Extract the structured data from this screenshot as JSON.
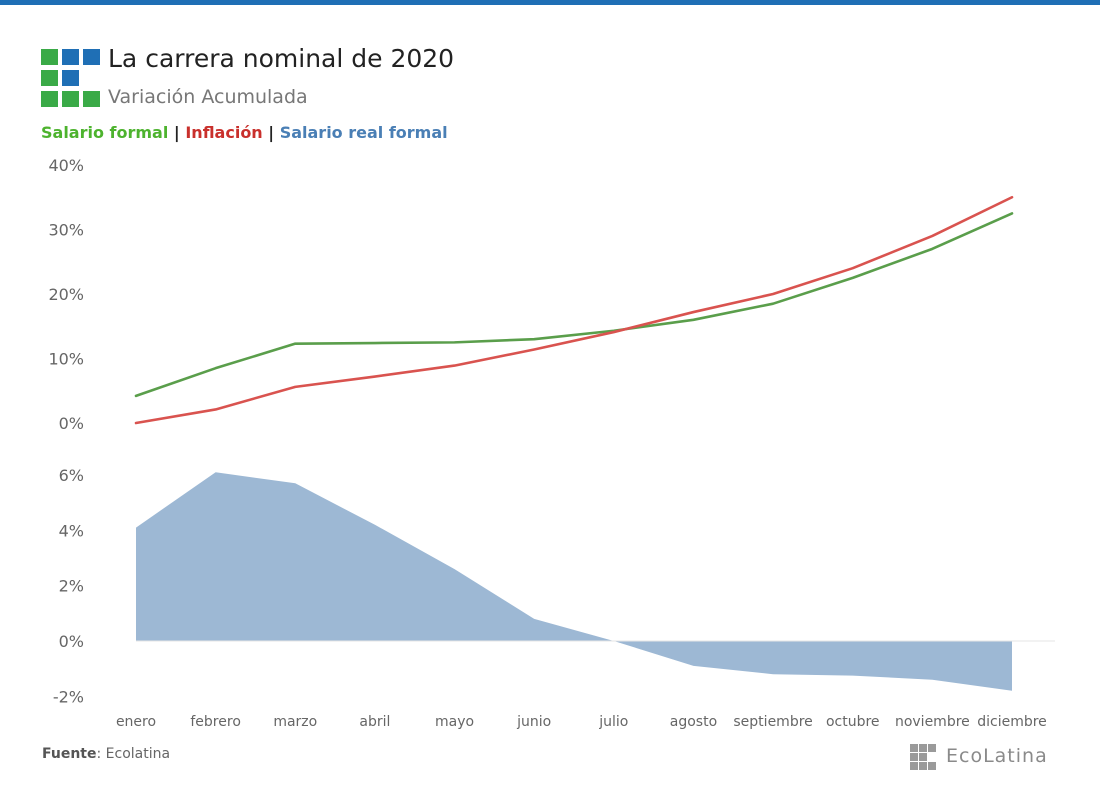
{
  "header": {
    "title": "La carrera nominal de 2020",
    "subtitle": "Variación Acumulada"
  },
  "legend": {
    "salario_formal": "Salario formal",
    "inflacion": "Inflación",
    "salario_real": "Salario real formal",
    "separator": "|"
  },
  "footer": {
    "source_label": "Fuente",
    "source_text": ": Ecolatina",
    "brand": "EcoLatina"
  },
  "colors": {
    "salario_formal": "#5a9e4b",
    "inflacion": "#d9534f",
    "salario_real": "#9db8d4",
    "legend_green": "#4db32e",
    "legend_red": "#c9302c",
    "legend_blue": "#4a7fb5",
    "logo_green": "#3aaa47",
    "logo_blue": "#1f6fb5"
  },
  "chart_data": [
    {
      "type": "line",
      "categories": [
        "enero",
        "febrero",
        "marzo",
        "abril",
        "mayo",
        "junio",
        "julio",
        "agosto",
        "septiembre",
        "octubre",
        "noviembre",
        "diciembre"
      ],
      "series": [
        {
          "name": "Salario formal",
          "values": [
            4.2,
            8.5,
            12.3,
            12.4,
            12.5,
            13.0,
            14.3,
            16.0,
            18.5,
            22.5,
            27.0,
            32.5
          ]
        },
        {
          "name": "Inflación",
          "values": [
            0.0,
            2.1,
            5.6,
            7.2,
            8.9,
            11.4,
            14.1,
            17.2,
            20.0,
            24.0,
            29.0,
            35.0
          ]
        }
      ],
      "y_ticks": [
        "40%",
        "30%",
        "20%",
        "10%",
        "0%"
      ],
      "grid": false
    },
    {
      "type": "area",
      "categories": [
        "enero",
        "febrero",
        "marzo",
        "abril",
        "mayo",
        "junio",
        "julio",
        "agosto",
        "septiembre",
        "octubre",
        "noviembre",
        "diciembre"
      ],
      "series": [
        {
          "name": "Salario real formal",
          "values": [
            4.1,
            6.1,
            5.7,
            4.2,
            2.6,
            0.8,
            0.0,
            -0.9,
            -1.2,
            -1.25,
            -1.4,
            -1.8
          ]
        }
      ],
      "y_ticks": [
        "6%",
        "4%",
        "2%",
        "0%",
        "-2%"
      ],
      "grid": false
    }
  ]
}
